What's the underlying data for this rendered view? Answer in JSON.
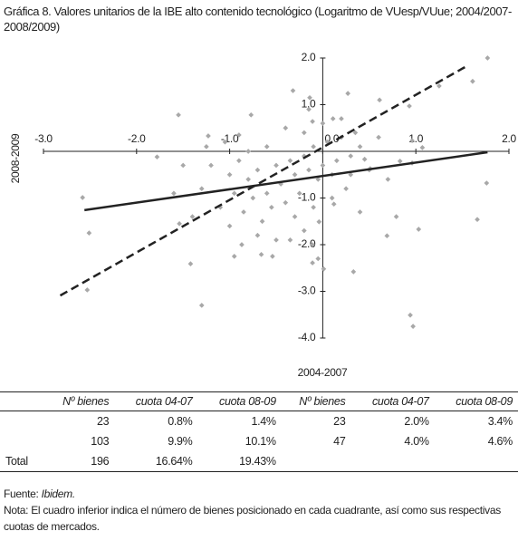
{
  "chart_data": {
    "type": "scatter",
    "title": "Gráfica 8. Valores unitarios de la IBE alto contenido tecnológico (Logaritmo de VUesp/VUue; 2004/2007-2008/2009)",
    "x_label": "2004-2007",
    "y_label": "2008-2009",
    "xlim": [
      -3,
      2
    ],
    "ylim": [
      -4,
      2
    ],
    "xticks": [
      {
        "value": -3,
        "label": "-3.0"
      },
      {
        "value": -2,
        "label": "-2.0"
      },
      {
        "value": -1,
        "label": "-1.0"
      },
      {
        "value": 0,
        "label": "0.0"
      },
      {
        "value": 1,
        "label": "1.0"
      },
      {
        "value": 2,
        "label": "2.0"
      }
    ],
    "yticks": [
      {
        "value": 2,
        "label": "2.0"
      },
      {
        "value": 1,
        "label": "1.0"
      },
      {
        "value": -1,
        "label": "-1.0"
      },
      {
        "value": -2,
        "label": "-2.0"
      },
      {
        "value": -3,
        "label": "-3.0"
      },
      {
        "value": -4,
        "label": "-4.0"
      }
    ],
    "points": {
      "color": "#a8a8a8",
      "x": [
        1.77,
        1.61,
        1.25,
        -0.32,
        -0.14,
        0.27,
        0.61,
        -1.55,
        -0.77,
        0.93,
        -0.11,
        0.11,
        -1.23,
        -1.78,
        -2.58,
        -2.51,
        -2.53,
        -1.42,
        -1.3,
        -1.54,
        -0.95,
        -0.87,
        -0.66,
        -0.54,
        -0.35,
        -0.11,
        -0.11,
        0.01,
        0.33,
        -0.04,
        0.12,
        0.83,
        0.96,
        0.79,
        0.69,
        1.03,
        0.94,
        0.97,
        1.66,
        1.76,
        1.07,
        0.96,
        0.45,
        0.51,
        -1.2,
        -1.0,
        -0.9,
        -0.8,
        -0.7,
        -0.6,
        -0.5,
        -0.45,
        -0.4,
        -0.35,
        -0.3,
        -0.25,
        -0.2,
        -0.15,
        -0.1,
        -0.05,
        0.0,
        0.05,
        0.1,
        0.15,
        0.2,
        0.25,
        0.3,
        0.35,
        -1.3,
        -1.1,
        -0.95,
        -0.85,
        -0.75,
        -0.65,
        -0.55,
        -0.3,
        -0.2,
        -0.1,
        0.1,
        -1.4,
        -1.25,
        -1.05,
        -0.9,
        -0.6,
        -0.4,
        -0.2,
        0.0,
        0.2,
        0.4,
        0.5,
        0.6,
        0.7,
        -1.6,
        -1.5,
        -0.7,
        -0.5,
        0.4,
        -0.15,
        -0.05,
        -1.0,
        -0.8,
        0.3
      ],
      "y": [
        2.0,
        1.5,
        1.4,
        1.3,
        1.15,
        1.24,
        1.1,
        0.78,
        0.78,
        0.97,
        0.64,
        0.7,
        0.33,
        -0.12,
        -0.99,
        -1.75,
        -2.97,
        -2.41,
        -3.3,
        -1.55,
        -2.25,
        -2.0,
        -2.21,
        -2.25,
        -1.9,
        -2.0,
        -2.39,
        -2.52,
        -2.58,
        -1.51,
        -1.13,
        -0.21,
        -0.25,
        -1.4,
        -1.81,
        -1.67,
        -3.51,
        -3.75,
        -1.46,
        -0.68,
        0.08,
        0.23,
        -0.17,
        -0.37,
        -0.3,
        -0.5,
        -0.2,
        -0.6,
        -0.4,
        -0.9,
        -0.3,
        -0.7,
        -1.1,
        -0.2,
        -0.5,
        -0.9,
        -0.1,
        -0.4,
        0.1,
        -0.6,
        -0.3,
        0.2,
        -0.5,
        -0.2,
        0.3,
        -0.8,
        -0.1,
        0.4,
        -0.8,
        -1.2,
        -0.9,
        -1.3,
        -1.0,
        -1.5,
        -1.2,
        -1.4,
        -1.7,
        -1.2,
        -1.0,
        -1.4,
        0.1,
        0.2,
        0.35,
        0.1,
        0.5,
        0.4,
        0.6,
        0.7,
        0.1,
        -0.4,
        0.3,
        -0.6,
        -0.9,
        -0.3,
        -1.8,
        -1.9,
        -1.3,
        0.9,
        -2.3,
        -1.6,
        0.0,
        -0.5
      ]
    },
    "lines": [
      {
        "x": [
          -2.56,
          1.77
        ],
        "y": [
          -1.26,
          -0.02
        ],
        "color": "#222222",
        "dashed": false
      },
      {
        "x": [
          -2.82,
          1.55
        ],
        "y": [
          -3.09,
          1.83
        ],
        "color": "#222222",
        "dashed": true
      }
    ]
  },
  "table": {
    "header": [
      "Nº bienes",
      "cuota 04-07",
      "cuota 08-09",
      "Nº bienes",
      "cuota 04-07",
      "cuota 08-09"
    ],
    "rows": [
      {
        "cells": [
          "23",
          "0.8%",
          "1.4%",
          "23",
          "2.0%",
          "3.4%"
        ]
      },
      {
        "cells": [
          "103",
          "9.9%",
          "10.1%",
          "47",
          "4.0%",
          "4.6%"
        ]
      },
      {
        "label": "Total",
        "cells": [
          "196",
          "16.64%",
          "19.43%"
        ]
      }
    ]
  },
  "footer": {
    "source_label": "Fuente:",
    "source": "Ibidem.",
    "note": "Nota: El cuadro inferior indica el número de bienes posicionado en cada cuadrante, así como sus respectivas cuotas de mercados."
  }
}
